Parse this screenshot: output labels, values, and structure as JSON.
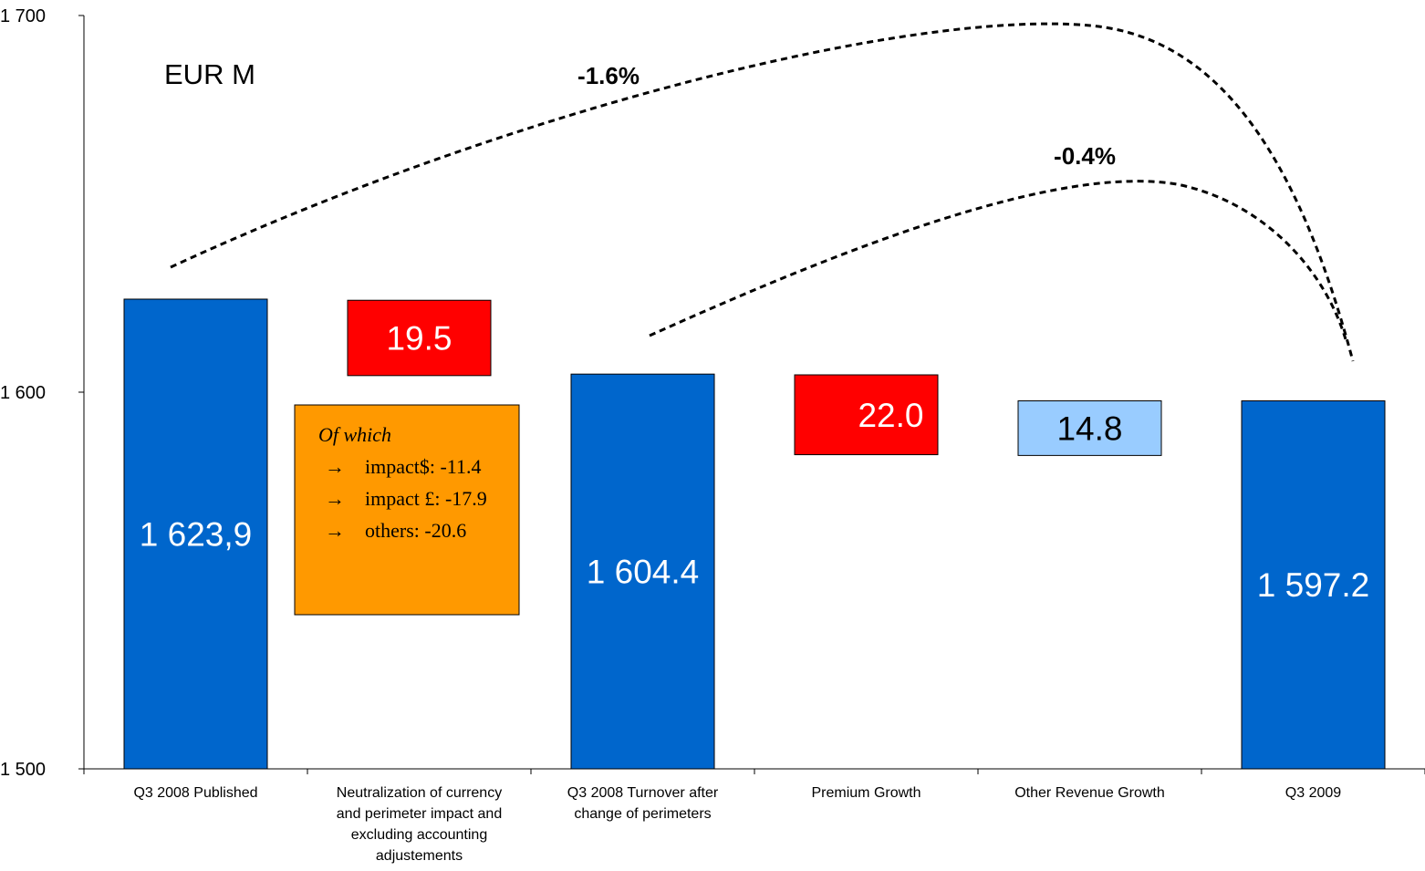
{
  "chart_data": {
    "type": "bar",
    "subtype": "waterfall",
    "unit_label": "EUR M",
    "ylim": [
      1500,
      1700
    ],
    "yticks": [
      {
        "value": 1500,
        "label": "1 500"
      },
      {
        "value": 1600,
        "label": "1 600"
      },
      {
        "value": 1700,
        "label": "1 700"
      }
    ],
    "categories": [
      [
        "Q3 2008 Published"
      ],
      [
        "Neutralization of currency",
        "and perimeter impact and",
        "excluding accounting",
        "adjustements"
      ],
      [
        "Q3 2008 Turnover after",
        "change of perimeters"
      ],
      [
        "Premium Growth"
      ],
      [
        "Other Revenue Growth"
      ],
      [
        "Q3 2009"
      ]
    ],
    "bars": [
      {
        "kind": "total",
        "bottom": 1500,
        "top": 1624.7,
        "label": "1 623,9",
        "color": "#0066CC",
        "label_color": "#ffffff"
      },
      {
        "kind": "delta",
        "bottom": 1604.4,
        "top": 1624.4,
        "label": "19.5",
        "color": "#FF0000",
        "label_color": "#ffffff"
      },
      {
        "kind": "total",
        "bottom": 1500,
        "top": 1604.8,
        "label": "1 604.4",
        "color": "#0066CC",
        "label_color": "#ffffff"
      },
      {
        "kind": "delta",
        "bottom": 1583.4,
        "top": 1604.6,
        "label": "22.0",
        "color": "#FF0000",
        "label_color": "#ffffff"
      },
      {
        "kind": "delta",
        "bottom": 1583.2,
        "top": 1597.7,
        "label": "14.8",
        "color": "#99CCFF",
        "label_color": "#000000"
      },
      {
        "kind": "total",
        "bottom": 1500,
        "top": 1597.7,
        "label": "1 597.2",
        "color": "#0066CC",
        "label_color": "#ffffff"
      }
    ],
    "annotations": [
      {
        "label": "-1.6%",
        "from_category": 0,
        "to_category": 5
      },
      {
        "label": "-0.4%",
        "from_category": 2,
        "to_category": 5
      }
    ],
    "breakdown_note": {
      "category": 1,
      "color": "#FF9900",
      "heading": "Of which",
      "items": [
        "impact$: -11.4",
        "impact £: -17.9",
        "others: -20.6"
      ]
    }
  }
}
